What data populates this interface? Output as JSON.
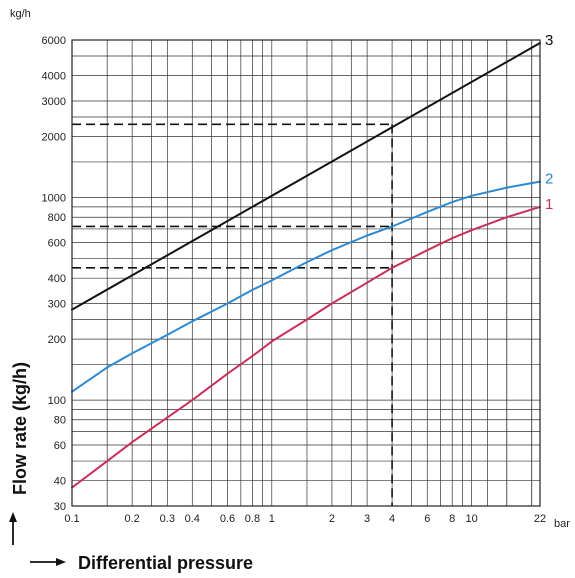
{
  "chart_data": {
    "type": "line",
    "title": "",
    "xlabel": "Differential pressure",
    "ylabel": "Flow rate (kg/h)",
    "x_unit": "bar",
    "y_unit": "kg/h",
    "x_scale": "log",
    "y_scale": "log",
    "xlim": [
      0.1,
      22
    ],
    "ylim": [
      30,
      6000
    ],
    "grid": true,
    "x_ticks": [
      0.1,
      0.2,
      0.3,
      0.4,
      0.6,
      0.8,
      1,
      2,
      3,
      4,
      6,
      8,
      10,
      22
    ],
    "x_tick_labels": [
      "0.1",
      "0.2",
      "0.3",
      "0.4",
      "0.6",
      "0.8",
      "1",
      "2",
      "3",
      "4",
      "6",
      "8",
      "10",
      "22"
    ],
    "y_ticks": [
      30,
      40,
      60,
      80,
      100,
      200,
      300,
      400,
      600,
      800,
      1000,
      2000,
      3000,
      4000,
      6000
    ],
    "y_tick_labels": [
      "30",
      "40",
      "60",
      "80",
      "100",
      "200",
      "300",
      "400",
      "600",
      "800",
      "1000",
      "2000",
      "3000",
      "4000",
      "6000"
    ],
    "series": [
      {
        "name": "1",
        "color": "#c8305a",
        "x": [
          0.1,
          0.15,
          0.2,
          0.3,
          0.4,
          0.6,
          0.8,
          1,
          1.5,
          2,
          3,
          4,
          6,
          8,
          10,
          15,
          22
        ],
        "y": [
          37,
          50,
          62,
          82,
          100,
          135,
          165,
          195,
          250,
          300,
          380,
          450,
          550,
          630,
          690,
          800,
          900
        ]
      },
      {
        "name": "2",
        "color": "#2e8ad0",
        "x": [
          0.1,
          0.15,
          0.2,
          0.3,
          0.4,
          0.6,
          0.8,
          1,
          1.5,
          2,
          3,
          4,
          6,
          8,
          10,
          15,
          22
        ],
        "y": [
          110,
          145,
          170,
          210,
          245,
          300,
          350,
          390,
          480,
          550,
          650,
          720,
          850,
          950,
          1020,
          1120,
          1200
        ]
      },
      {
        "name": "3",
        "color": "#111111",
        "x": [
          0.1,
          22
        ],
        "y": [
          280,
          5800
        ]
      }
    ],
    "reference_lines": {
      "x": 4,
      "y": [
        450,
        720,
        2300
      ],
      "style": "dashed"
    }
  }
}
